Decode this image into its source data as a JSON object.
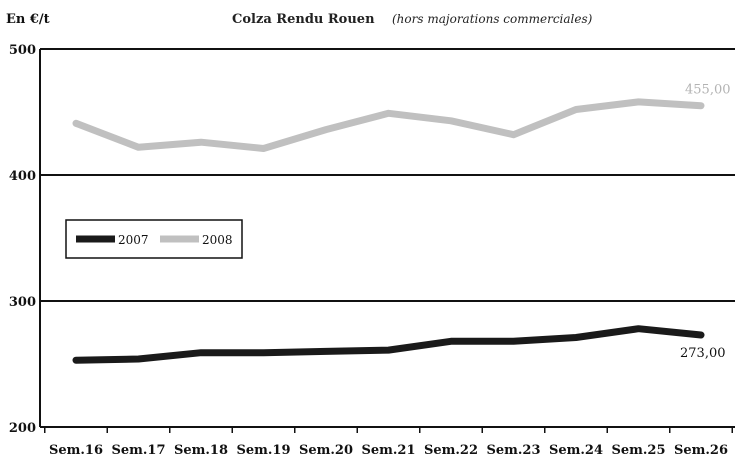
{
  "chart_data": {
    "type": "line",
    "title": "Colza Rendu Rouen",
    "subtitle": "(hors majorations commerciales)",
    "ylabel": "En €/t",
    "xlabel": "",
    "categories": [
      "Sem.16",
      "Sem.17",
      "Sem.18",
      "Sem.19",
      "Sem.20",
      "Sem.21",
      "Sem.22",
      "Sem.23",
      "Sem.24",
      "Sem.25",
      "Sem.26"
    ],
    "ylim": [
      200,
      500
    ],
    "yticks": [
      "200",
      "300",
      "400",
      "500"
    ],
    "grid": true,
    "legend_position": "left",
    "series": [
      {
        "name": "2007",
        "color": "#1a1a1a",
        "values": [
          253,
          254,
          259,
          259,
          260,
          261,
          268,
          268,
          271,
          278,
          273
        ],
        "end_label": "273,00"
      },
      {
        "name": "2008",
        "color": "#c0c0c0",
        "values": [
          441,
          422,
          426,
          421,
          436,
          449,
          443,
          432,
          452,
          458,
          455
        ],
        "end_label": "455,00"
      }
    ]
  }
}
